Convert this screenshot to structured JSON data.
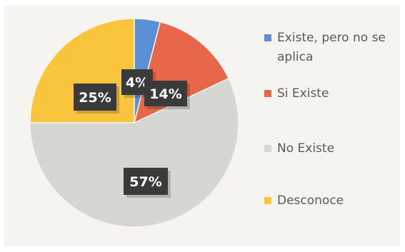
{
  "chart_data": {
    "type": "pie",
    "categories": [
      "Existe, pero no se aplica",
      "Si Existe",
      "No Existe",
      "Desconoce"
    ],
    "values": [
      4,
      14,
      57,
      25
    ],
    "data_labels": [
      "4%",
      "14%",
      "57%",
      "25%"
    ],
    "colors": [
      "#5b8fd6",
      "#e8674a",
      "#d6d6d2",
      "#f9c53c"
    ],
    "legend_position": "right",
    "start_angle_deg": 0,
    "direction": "clockwise"
  }
}
